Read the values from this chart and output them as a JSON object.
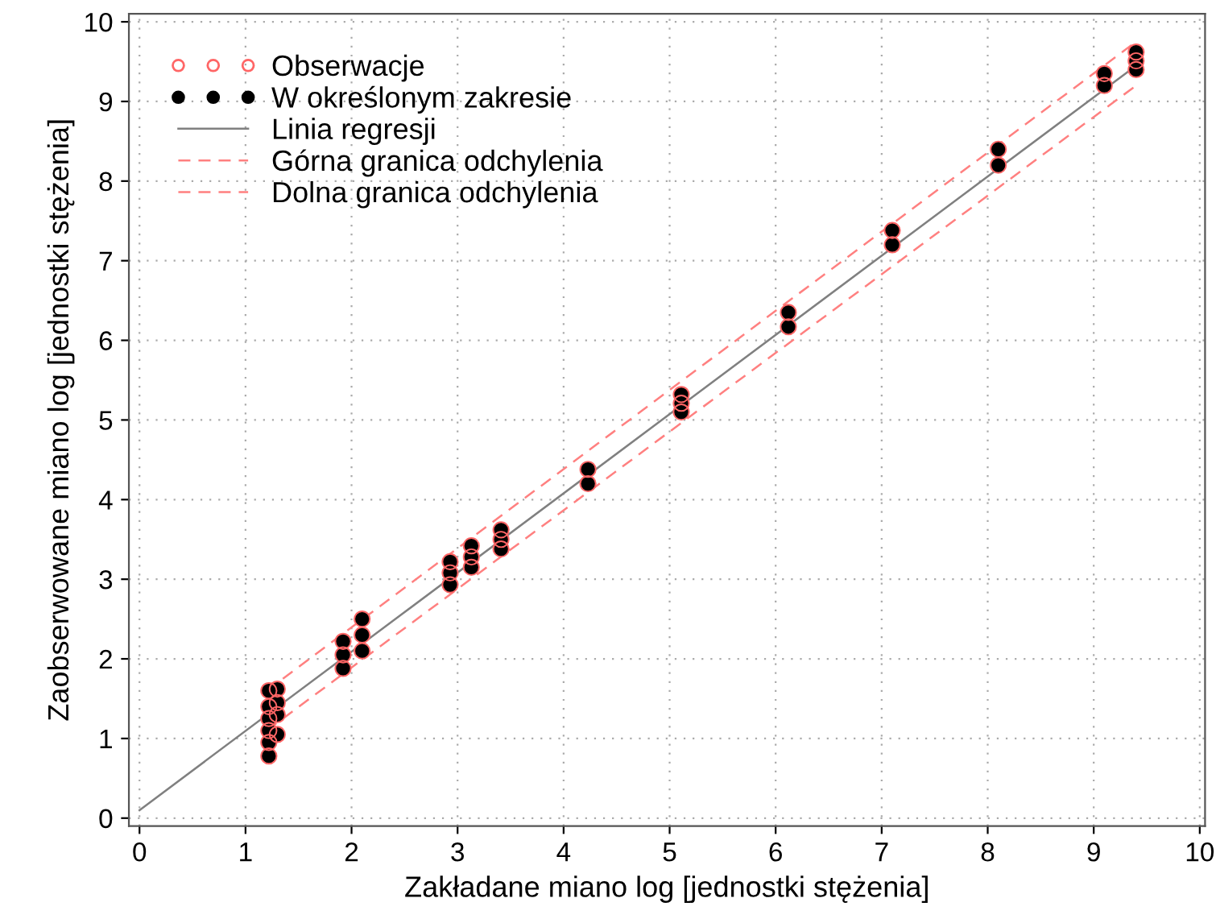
{
  "chart_data": {
    "type": "scatter",
    "xlabel": "Zakładane miano log [jednostki stężenia]",
    "ylabel": "Zaobserwowane miano log [jednostki stężenia]",
    "xlim": [
      -0.1,
      10.05
    ],
    "ylim": [
      -0.1,
      10.1
    ],
    "xticks": [
      0,
      1,
      2,
      3,
      4,
      5,
      6,
      7,
      8,
      9,
      10
    ],
    "yticks": [
      0,
      1,
      2,
      3,
      4,
      5,
      6,
      7,
      8,
      9,
      10
    ],
    "grid": true,
    "legend": "top left",
    "series": [
      {
        "name": "Obserwacje",
        "marker": "circle",
        "color": "#ff6666",
        "x": [
          1.22,
          1.22,
          1.22,
          1.22,
          1.22,
          1.22,
          1.3,
          1.3,
          1.3,
          1.3,
          1.92,
          1.92,
          1.92,
          2.1,
          2.1,
          2.1,
          2.93,
          2.93,
          2.93,
          3.13,
          3.13,
          3.13,
          3.41,
          3.41,
          3.41,
          4.23,
          4.23,
          5.11,
          5.11,
          5.11,
          6.12,
          6.12,
          7.1,
          7.1,
          8.1,
          8.1,
          9.1,
          9.1,
          9.4,
          9.4,
          9.4
        ],
        "values": [
          0.78,
          0.95,
          1.1,
          1.25,
          1.4,
          1.6,
          1.05,
          1.3,
          1.45,
          1.62,
          1.88,
          2.05,
          2.22,
          2.1,
          2.3,
          2.5,
          2.93,
          3.08,
          3.22,
          3.15,
          3.28,
          3.42,
          3.38,
          3.5,
          3.62,
          4.2,
          4.38,
          5.1,
          5.21,
          5.32,
          6.17,
          6.35,
          7.2,
          7.38,
          8.2,
          8.4,
          9.2,
          9.35,
          9.4,
          9.51,
          9.62
        ]
      },
      {
        "name": "W określonym zakresie",
        "marker": "circle",
        "color": "#000000",
        "x": [
          1.22,
          1.22,
          1.22,
          1.22,
          1.22,
          1.22,
          1.3,
          1.3,
          1.3,
          1.3,
          1.92,
          1.92,
          1.92,
          2.1,
          2.1,
          2.1,
          2.93,
          2.93,
          2.93,
          3.13,
          3.13,
          3.13,
          3.41,
          3.41,
          3.41,
          4.23,
          4.23,
          5.11,
          5.11,
          5.11,
          6.12,
          6.12,
          7.1,
          7.1,
          8.1,
          8.1,
          9.1,
          9.1,
          9.4,
          9.4,
          9.4
        ],
        "values": [
          0.78,
          0.95,
          1.1,
          1.25,
          1.4,
          1.6,
          1.05,
          1.3,
          1.45,
          1.62,
          1.88,
          2.05,
          2.22,
          2.1,
          2.3,
          2.5,
          2.93,
          3.08,
          3.22,
          3.15,
          3.28,
          3.42,
          3.38,
          3.5,
          3.62,
          4.2,
          4.38,
          5.1,
          5.21,
          5.32,
          6.17,
          6.35,
          7.2,
          7.38,
          8.2,
          8.4,
          9.2,
          9.35,
          9.4,
          9.51,
          9.62
        ]
      },
      {
        "name": "Linia regresji",
        "type": "line",
        "line_style": "solid",
        "color": "#808080",
        "x": [
          0,
          9.4
        ],
        "values": [
          0.1,
          9.45
        ]
      },
      {
        "name": "Górna granica odchylenia",
        "type": "line",
        "line_style": "dashed",
        "color": "#ff8080",
        "x": [
          1.2,
          9.4
        ],
        "values": [
          1.6,
          9.75
        ]
      },
      {
        "name": "Dolna granica odchylenia",
        "type": "line",
        "line_style": "dashed",
        "color": "#ff8080",
        "x": [
          1.2,
          9.4
        ],
        "values": [
          1.1,
          9.2
        ]
      }
    ]
  }
}
